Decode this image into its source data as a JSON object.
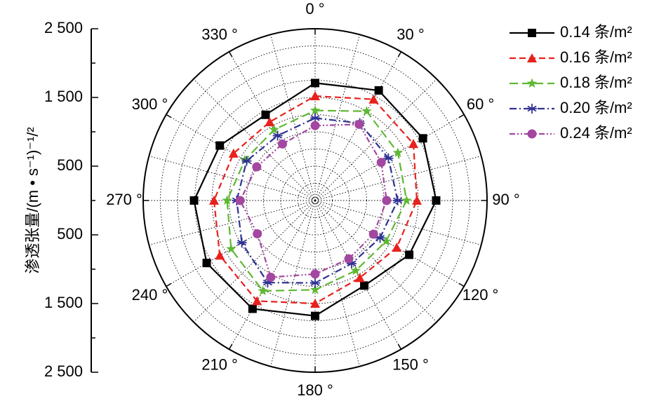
{
  "chart_data": {
    "type": "polar",
    "y_label": "渗透张量/(m • s⁻¹)⁻¹/²",
    "x": [
      0,
      30,
      60,
      90,
      120,
      150,
      180,
      210,
      240,
      270,
      300,
      330
    ],
    "xticks": [
      {
        "value": 0,
        "label": "0 °"
      },
      {
        "value": 30,
        "label": "30 °"
      },
      {
        "value": 60,
        "label": "60 °"
      },
      {
        "value": 90,
        "label": "90 °"
      },
      {
        "value": 120,
        "label": "120 °"
      },
      {
        "value": 150,
        "label": "150 °"
      },
      {
        "value": 180,
        "label": "180 °"
      },
      {
        "value": 210,
        "label": "210 °"
      },
      {
        "value": 240,
        "label": "240 °"
      },
      {
        "value": 270,
        "label": "270 °"
      },
      {
        "value": 300,
        "label": "300 °"
      },
      {
        "value": 330,
        "label": "330 °"
      }
    ],
    "ylim": [
      0,
      2500
    ],
    "yticks": [
      {
        "value": 2500,
        "label": "2 500"
      },
      {
        "value": 1500,
        "label": "1 500"
      },
      500
    ],
    "grid": true,
    "legend": "upper right",
    "series": [
      {
        "name": "0.14 条/m²",
        "color": "#000000",
        "marker": "square",
        "linestyle": "solid",
        "values": [
          1710,
          1850,
          1810,
          1760,
          1580,
          1430,
          1680,
          1820,
          1820,
          1760,
          1600,
          1440
        ]
      },
      {
        "name": "0.16 条/m²",
        "color": "#e8211d",
        "marker": "triangle",
        "linestyle": "dashed",
        "values": [
          1520,
          1700,
          1650,
          1480,
          1370,
          1300,
          1500,
          1690,
          1600,
          1470,
          1370,
          1320
        ]
      },
      {
        "name": "0.18 条/m²",
        "color": "#5fb833",
        "marker": "star",
        "linestyle": "longdash",
        "values": [
          1310,
          1500,
          1390,
          1330,
          1190,
          1180,
          1300,
          1520,
          1410,
          1280,
          1180,
          1190
        ]
      },
      {
        "name": "0.20 条/m²",
        "color": "#2e3192",
        "marker": "asterisk",
        "linestyle": "dashdot",
        "values": [
          1200,
          1300,
          1230,
          1200,
          1090,
          1060,
          1200,
          1380,
          1230,
          1140,
          1150,
          1090
        ]
      },
      {
        "name": "0.24 条/m²",
        "color": "#a347a0",
        "marker": "circle",
        "linestyle": "dashdotdot",
        "values": [
          1090,
          1280,
          1110,
          1040,
          980,
          980,
          1070,
          1290,
          970,
          1090,
          980,
          950
        ]
      }
    ]
  }
}
